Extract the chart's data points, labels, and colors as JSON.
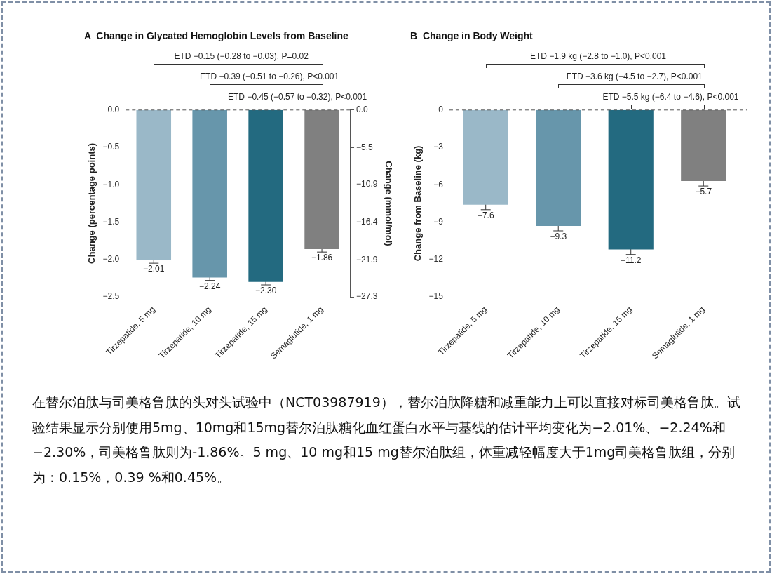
{
  "chart_data": [
    {
      "type": "bar",
      "title": "A  Change in Glycated Hemoglobin Levels from Baseline",
      "ylabel": "Change (percentage points)",
      "y2label": "Change (mmol/mol)",
      "categories": [
        "Tirzepatide, 5 mg",
        "Tirzepatide, 10 mg",
        "Tirzepatide, 15 mg",
        "Semaglutide, 1 mg"
      ],
      "values": [
        -2.01,
        -2.24,
        -2.3,
        -1.86
      ],
      "colors": [
        "#9ab8c8",
        "#6796ab",
        "#236a80",
        "#808080"
      ],
      "errors": [
        0.04,
        0.04,
        0.04,
        0.04
      ],
      "value_labels": [
        "−2.01",
        "−2.24",
        "−2.30",
        "−1.86"
      ],
      "ylim": [
        -2.5,
        0
      ],
      "yticks": [
        {
          "value": -2.5,
          "label": "−2.5"
        },
        {
          "value": -2,
          "label": "−2.0"
        },
        {
          "value": -1.5,
          "label": "−1.5"
        },
        {
          "value": -1,
          "label": "−1.0"
        },
        {
          "value": -0.5,
          "label": "−0.5"
        },
        {
          "value": 0,
          "label": "0.0"
        }
      ],
      "y2lim": [
        -27.3,
        0
      ],
      "y2ticks": [
        {
          "value": -27.3,
          "label": "−27.3"
        },
        {
          "value": -21.9,
          "label": "−21.9"
        },
        {
          "value": -16.4,
          "label": "−16.4"
        },
        {
          "value": -10.9,
          "label": "−10.9"
        },
        {
          "value": -5.5,
          "label": "−5.5"
        },
        {
          "value": 0,
          "label": "0.0"
        }
      ],
      "ref_lines": [
        {
          "axis": "y",
          "value": 0,
          "color": "#555555",
          "line_style": "dashed"
        }
      ],
      "grid": false,
      "legend": false,
      "annotations": [
        "ETD −0.15 (−0.28 to −0.03), P=0.02",
        "ETD −0.39 (−0.51 to −0.26), P<0.001",
        "ETD −0.45 (−0.57 to −0.32), P<0.001"
      ]
    },
    {
      "type": "bar",
      "title": "B  Change in Body Weight",
      "ylabel": "Change from Baseline (kg)",
      "categories": [
        "Tirzepatide, 5 mg",
        "Tirzepatide, 10 mg",
        "Tirzepatide, 15 mg",
        "Semaglutide, 1 mg"
      ],
      "values": [
        -7.6,
        -9.3,
        -11.2,
        -5.7
      ],
      "colors": [
        "#9ab8c8",
        "#6796ab",
        "#236a80",
        "#808080"
      ],
      "errors": [
        0.4,
        0.4,
        0.4,
        0.4
      ],
      "value_labels": [
        "−7.6",
        "−9.3",
        "−11.2",
        "−5.7"
      ],
      "ylim": [
        -15,
        0
      ],
      "yticks": [
        {
          "value": -15,
          "label": "−15"
        },
        {
          "value": -12,
          "label": "−12"
        },
        {
          "value": -9,
          "label": "−9"
        },
        {
          "value": -6,
          "label": "−6"
        },
        {
          "value": -3,
          "label": "−3"
        },
        0
      ],
      "ref_lines": [
        {
          "axis": "y",
          "value": 0,
          "color": "#555555",
          "line_style": "dashed"
        }
      ],
      "grid": false,
      "legend": false,
      "annotations": [
        "ETD −1.9 kg (−2.8 to −1.0), P<0.001",
        "ETD −3.6 kg (−4.5 to −2.7), P<0.001",
        "ETD −5.5 kg (−6.4 to −4.6), P<0.001",
        "在替尔泊肽与司美格鲁肽的头对头试验中（NCT03987919），替尔泊肽降糖和减重能力上可以直接对标司美格鲁肽。试验结果显示分别使用5mg、10mg和15mg替尔泊肽糖化血红蛋白水平与基线的估计平均变化为−2.01%、−2.24%和−2.30%，司美格鲁肽则为-1.86%。5 mg、10 mg和15 mg替尔泊肽组，体重减轻幅度大于1mg司美格鲁肽组，分别为：0.15%，0.39 %和0.45%。"
      ]
    }
  ]
}
